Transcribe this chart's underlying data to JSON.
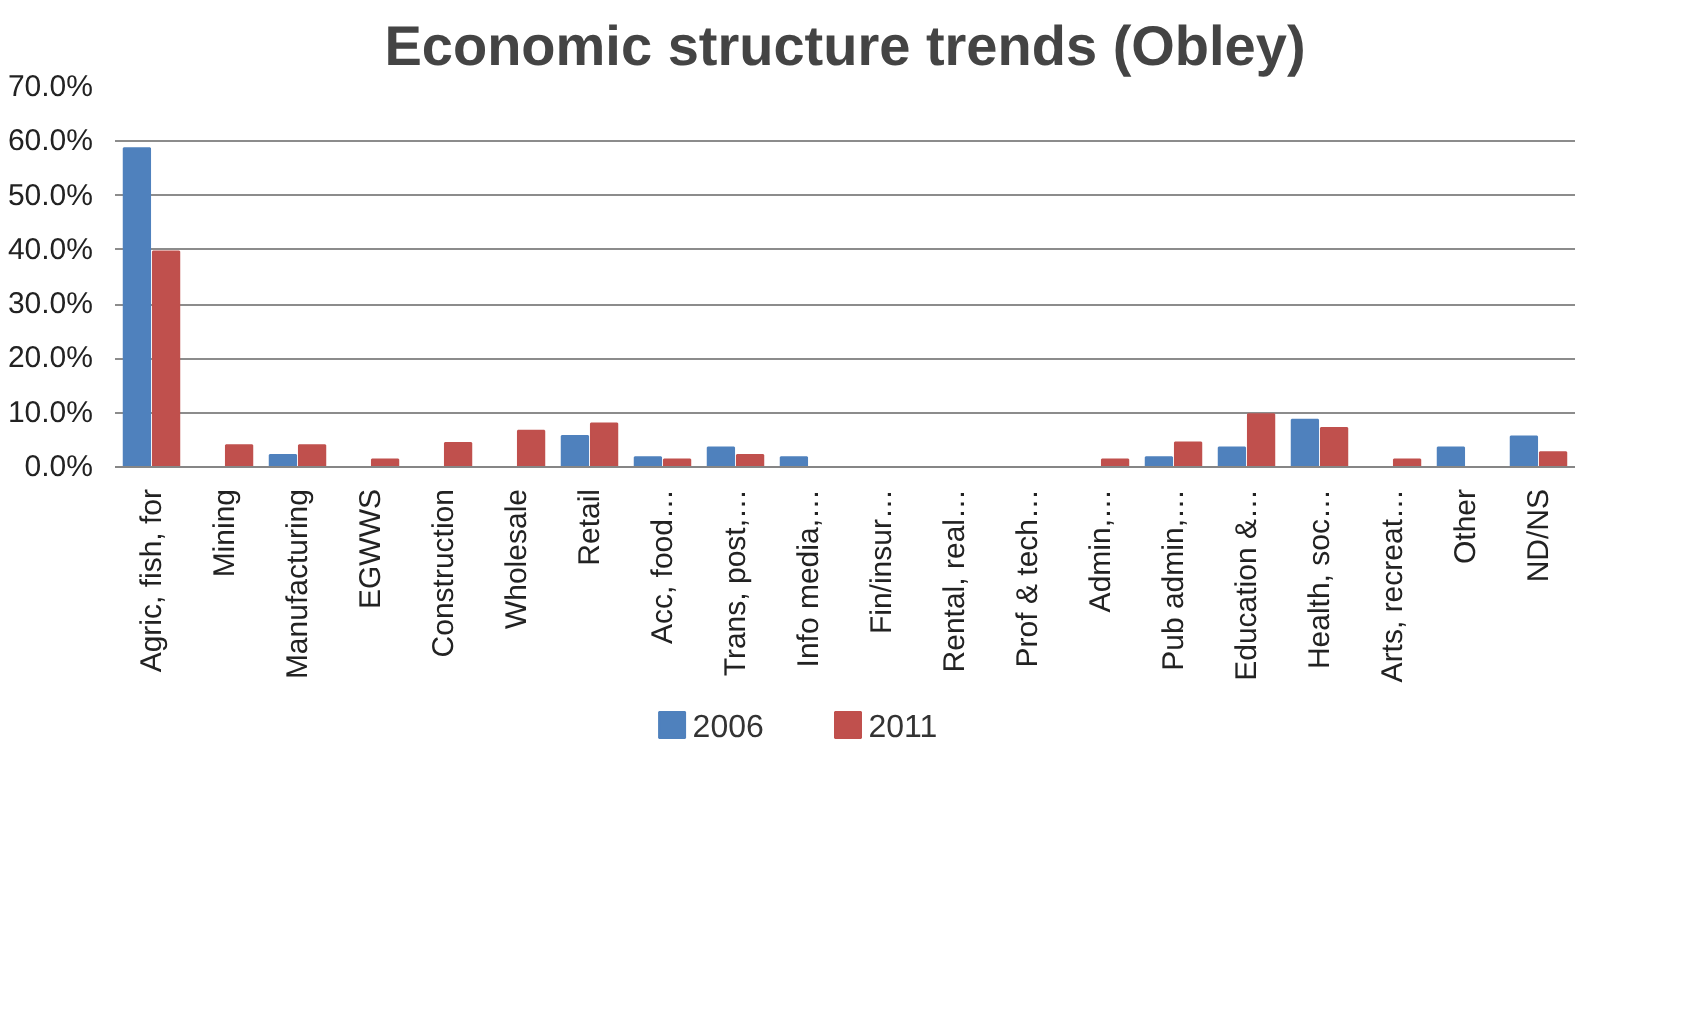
{
  "chart_data": {
    "type": "bar",
    "title": "Economic structure trends (Obley)",
    "categories": [
      "Agric, fish, for",
      "Mining",
      "Manufacturing",
      "EGWWS",
      "Construction",
      "Wholesale",
      "Retail",
      "Acc, food…",
      "Trans, post,…",
      "Info media,…",
      "Fin/insur…",
      "Rental, real…",
      "Prof & tech…",
      "Admin,…",
      "Pub admin,…",
      "Education &…",
      "Health, soc…",
      "Arts, recreat…",
      "Other",
      "ND/NS"
    ],
    "series": [
      {
        "name": "2006",
        "color": "#4f81bd",
        "values": [
          58.7,
          0,
          2.2,
          0,
          0,
          0,
          5.7,
          1.8,
          3.6,
          1.8,
          0,
          0,
          0,
          0,
          1.8,
          3.6,
          8.7,
          0,
          3.6,
          5.6
        ]
      },
      {
        "name": "2011",
        "color": "#c0504d",
        "values": [
          39.7,
          4.0,
          4.0,
          1.4,
          4.4,
          6.7,
          8.0,
          1.4,
          2.2,
          0,
          0,
          0,
          0,
          1.4,
          4.5,
          9.7,
          7.2,
          1.4,
          0,
          2.7
        ]
      }
    ],
    "ylim": [
      0,
      70
    ],
    "yticks": [
      {
        "value": 0,
        "label": "0.0%"
      },
      {
        "value": 10,
        "label": "10.0%"
      },
      {
        "value": 20,
        "label": "20.0%"
      },
      {
        "value": 30,
        "label": "30.0%"
      },
      {
        "value": 40,
        "label": "40.0%"
      },
      {
        "value": 50,
        "label": "50.0%"
      },
      {
        "value": 60,
        "label": "60.0%"
      },
      {
        "value": 70,
        "label": "70.0%"
      }
    ],
    "grid": "y",
    "legend": "bottom"
  }
}
